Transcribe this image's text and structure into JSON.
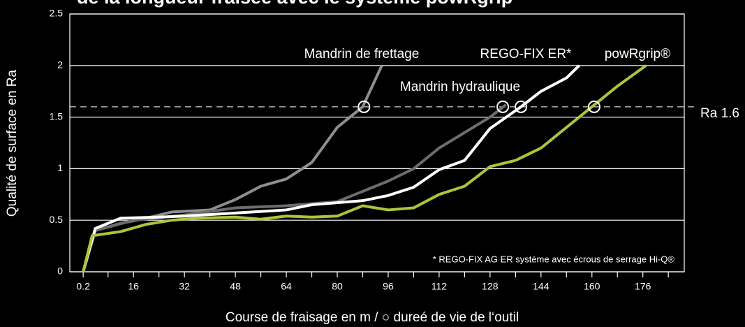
{
  "chart_data": {
    "type": "line",
    "title": "de la longueur fraisée avec le système powRgrip",
    "xlabel": "Course de fraisage en m / ○ dureé de vie de l‘outil",
    "ylabel": "Qualité de surface en Ra",
    "xlim": [
      -4,
      189
    ],
    "ylim": [
      0,
      2.5
    ],
    "xticks": [
      0.2,
      16,
      32,
      48,
      64,
      80,
      96,
      112,
      128,
      144,
      160,
      176
    ],
    "xticks_minor": [
      8,
      24,
      40,
      56,
      72,
      88,
      104,
      120,
      136,
      152,
      168,
      184
    ],
    "yticks": [
      0,
      0.5,
      1,
      1.5,
      2,
      2.5
    ],
    "grid": true,
    "reference": {
      "value": 1.6,
      "label": "Ra 1.6"
    },
    "footnote": "* REGO-FIX AG ER système avec écrous de serrage Hi-Q®",
    "series": [
      {
        "name": "Mandrin de frettage",
        "color": "#8e8e8e",
        "x": [
          0.2,
          4,
          12,
          20,
          28,
          40,
          48,
          56,
          64,
          72,
          80,
          84,
          88,
          94
        ],
        "values": [
          0,
          0.4,
          0.47,
          0.52,
          0.58,
          0.6,
          0.7,
          0.83,
          0.9,
          1.06,
          1.4,
          1.5,
          1.6,
          2.0
        ],
        "tool_life_x": 88.4
      },
      {
        "name": "Mandrin hydraulique",
        "color": "#6c6c6c",
        "x": [
          0.2,
          4,
          16,
          32,
          48,
          64,
          80,
          88,
          96,
          104,
          112,
          120,
          128,
          133
        ],
        "values": [
          0,
          0.4,
          0.5,
          0.55,
          0.62,
          0.64,
          0.68,
          0.78,
          0.88,
          1.0,
          1.2,
          1.35,
          1.5,
          1.62
        ],
        "tool_life_x": 132
      },
      {
        "name": "REGO-FIX ER*",
        "color": "#ffffff",
        "x": [
          0.2,
          4,
          12,
          24,
          32,
          48,
          64,
          72,
          88,
          96,
          104,
          112,
          120,
          128,
          137.7,
          144,
          152,
          156
        ],
        "values": [
          0,
          0.42,
          0.52,
          0.53,
          0.54,
          0.57,
          0.6,
          0.65,
          0.69,
          0.74,
          0.82,
          0.99,
          1.08,
          1.39,
          1.6,
          1.75,
          1.88,
          2.0
        ],
        "tool_life_x": 137.7
      },
      {
        "name": "powRgrip®",
        "color": "#a9c63b",
        "x": [
          0.2,
          3,
          12,
          20,
          28,
          36,
          48,
          56,
          64,
          72,
          80,
          88,
          96,
          104,
          112,
          120,
          128,
          136,
          144,
          160,
          168,
          177
        ],
        "values": [
          0,
          0.35,
          0.39,
          0.46,
          0.5,
          0.52,
          0.53,
          0.51,
          0.54,
          0.53,
          0.54,
          0.64,
          0.6,
          0.62,
          0.75,
          0.83,
          1.02,
          1.08,
          1.2,
          1.6,
          1.8,
          2.0
        ],
        "tool_life_x": 160.7
      }
    ]
  }
}
